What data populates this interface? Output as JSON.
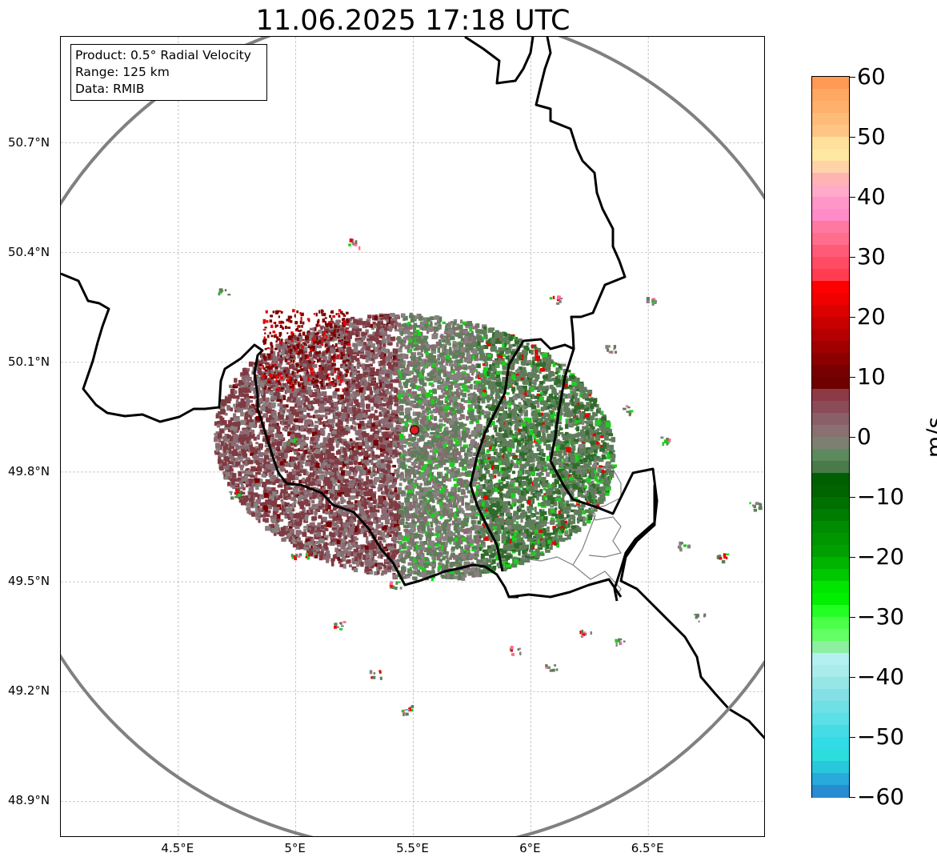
{
  "title": "11.06.2025 17:18 UTC",
  "info_box": {
    "product": "Product: 0.5° Radial Velocity",
    "range": "Range: 125 km",
    "data": "Data: RMIB"
  },
  "lat_axis": {
    "labels": [
      "50.7°N",
      "50.4°N",
      "50.1°N",
      "49.8°N",
      "49.5°N",
      "49.2°N",
      "48.9°N"
    ],
    "values": [
      50.7,
      50.4,
      50.1,
      49.8,
      49.5,
      49.2,
      48.9
    ]
  },
  "lon_axis": {
    "labels": [
      "4.5°E",
      "5°E",
      "5.5°E",
      "6°E",
      "6.5°E"
    ],
    "values": [
      4.5,
      5.0,
      5.5,
      6.0,
      6.5
    ]
  },
  "map_extent": {
    "lon_min": 4.0,
    "lon_max": 7.0,
    "lat_min": 48.8,
    "lat_max": 50.99
  },
  "radar_site": {
    "lon": 5.505,
    "lat": 49.915,
    "color": "#e31a1c"
  },
  "range_ring_color": "#808080",
  "colorbar": {
    "unit": "m/s",
    "min": -60,
    "max": 60,
    "tick_labels": [
      "60",
      "50",
      "40",
      "30",
      "20",
      "10",
      "0",
      "−10",
      "−20",
      "−30",
      "−40",
      "−50",
      "−60"
    ],
    "tick_values": [
      60,
      50,
      40,
      30,
      20,
      10,
      0,
      -10,
      -20,
      -30,
      -40,
      -50,
      -60
    ],
    "colors_top_to_bottom": [
      "#ff9a55",
      "#ffa864",
      "#ffb06c",
      "#ffbc78",
      "#ffc584",
      "#ffe09c",
      "#ffe8a0",
      "#ffd3a8",
      "#ffb4b4",
      "#ffaac8",
      "#ff96c8",
      "#ff8cc8",
      "#ff78a0",
      "#ff6e8c",
      "#ff5a78",
      "#ff4b64",
      "#ff3c50",
      "#ff0000",
      "#f00000",
      "#dc0000",
      "#c80000",
      "#b40000",
      "#a00000",
      "#8c0000",
      "#780000",
      "#6e0000",
      "#8b3a46",
      "#8c4b58",
      "#8a6068",
      "#8a7070",
      "#7d8070",
      "#5c8a5c",
      "#4a7a4a",
      "#005f00",
      "#006400",
      "#007000",
      "#007d00",
      "#008c00",
      "#009600",
      "#00a000",
      "#00b400",
      "#00c800",
      "#00e600",
      "#00f000",
      "#23ff23",
      "#4bff4b",
      "#64ff64",
      "#8cf0a0",
      "#b4f0f0",
      "#aaecec",
      "#96e6e6",
      "#82e0e6",
      "#6ee0e6",
      "#5ae0e6",
      "#46dce6",
      "#32dce6",
      "#2ddcdc",
      "#28c8dc",
      "#28aadc",
      "#288cd2"
    ]
  },
  "echo_colors": {
    "inbound_brown": "#7f3a42",
    "mauve": "#8a6a72",
    "gray_zero": "#86807e",
    "outbound_green": "#5f7d5a",
    "dark_green": "#2f6b2a",
    "bright_green": "#1ecf1e",
    "dark_red": "#7a0000",
    "red": "#e60000",
    "pink": "#ff6e96",
    "cyan": "#28d2e6"
  }
}
